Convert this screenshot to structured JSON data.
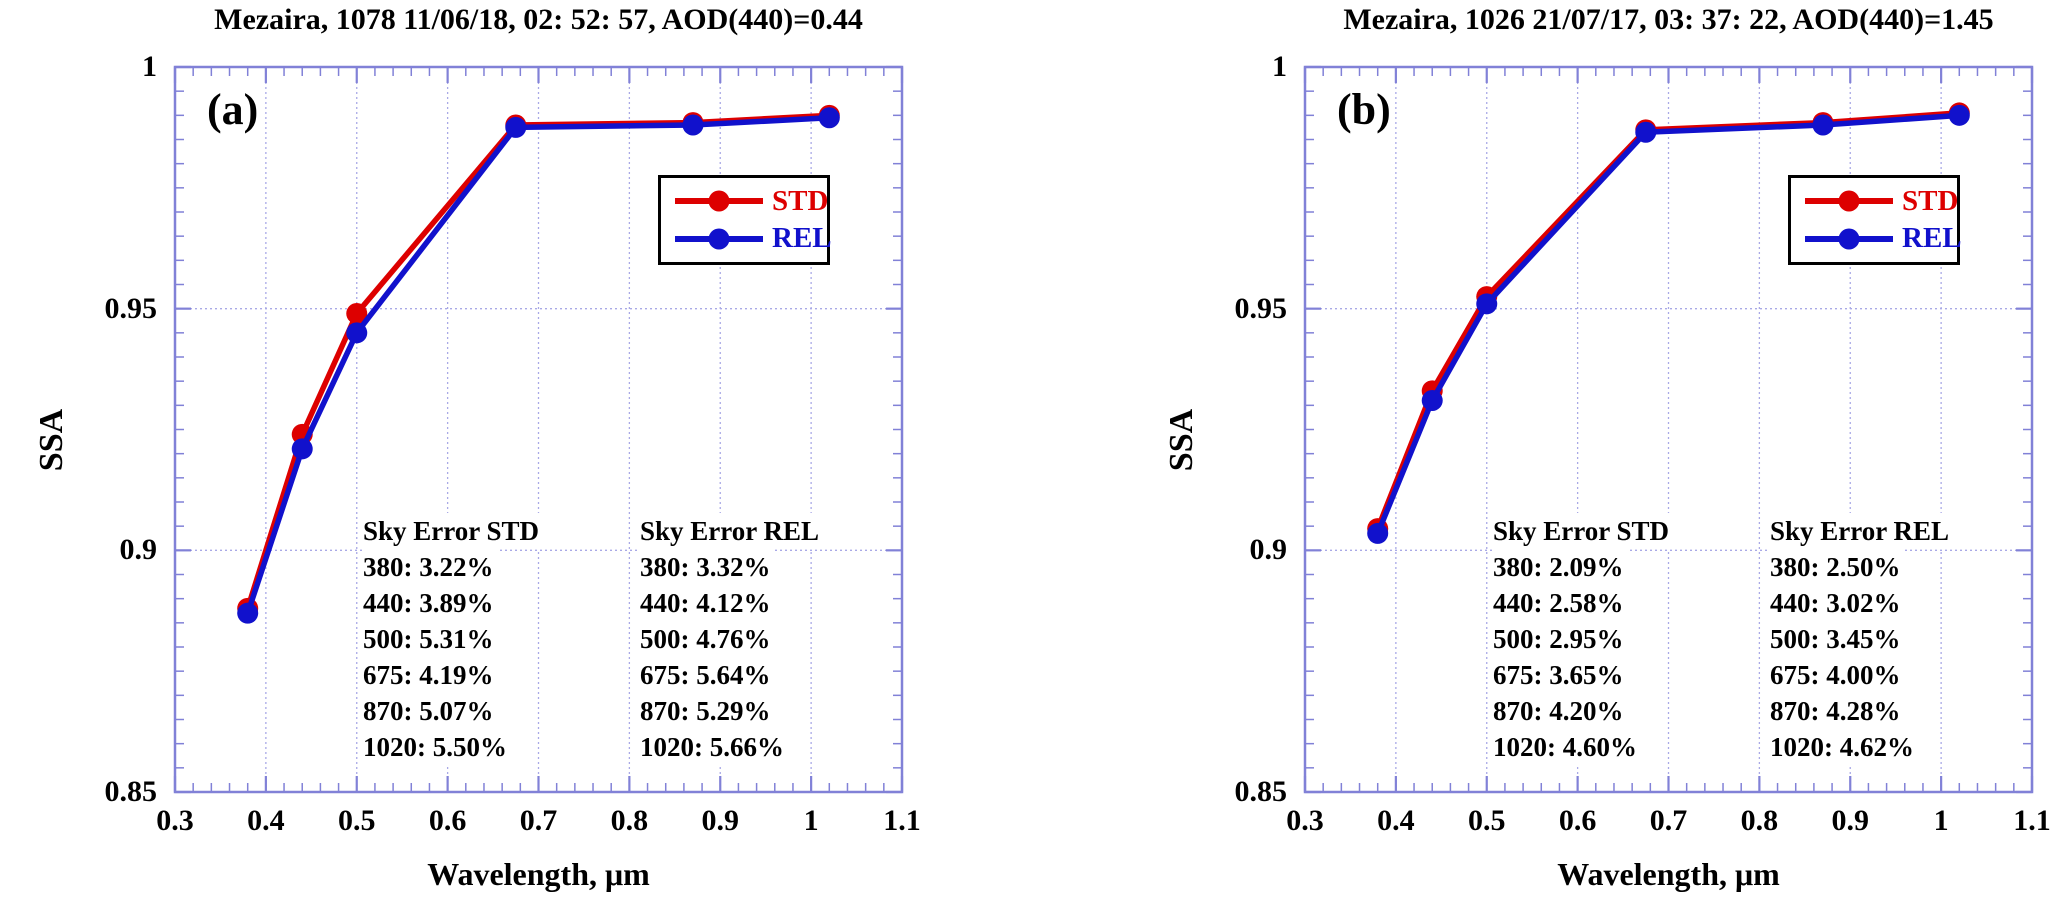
{
  "figure": {
    "background": "#ffffff",
    "text_color": "#000000",
    "axis_color": "#8181d7",
    "grid_color": "#a9a9e6",
    "legend_border_color": "#000000"
  },
  "chart_data": [
    {
      "type": "line",
      "panel_label": "(a)",
      "title": "Mezaira, 1078 11/06/18, 02: 52: 57, AOD(440)=0.44",
      "xlabel": "Wavelength, μm",
      "ylabel": "SSA",
      "xlim": [
        0.3,
        1.1
      ],
      "ylim": [
        0.85,
        1.0
      ],
      "grid": true,
      "legend_position": "upper-right",
      "x_tick_labels": [
        "0.3",
        "0.4",
        "0.5",
        "0.6",
        "0.7",
        "0.8",
        "0.9",
        "1",
        "1.1"
      ],
      "x_tick_values": [
        0.3,
        0.4,
        0.5,
        0.6,
        0.7,
        0.8,
        0.9,
        1.0,
        1.1
      ],
      "y_tick_labels": [
        "1",
        "0.95",
        "0.9",
        "0.85"
      ],
      "y_tick_values": [
        1.0,
        0.95,
        0.9,
        0.85
      ],
      "x_minor_step": 0.02,
      "y_minor_step": 0.005,
      "x": [
        0.38,
        0.44,
        0.5,
        0.675,
        0.87,
        1.02
      ],
      "series": [
        {
          "name": "STD",
          "color": "#dd0000",
          "values": [
            0.888,
            0.924,
            0.949,
            0.988,
            0.9885,
            0.99
          ]
        },
        {
          "name": "REL",
          "color": "#1111cc",
          "values": [
            0.887,
            0.921,
            0.945,
            0.9875,
            0.988,
            0.9895
          ]
        }
      ],
      "annotations": [
        {
          "heading": "Sky Error STD",
          "lines": [
            "380: 3.22%",
            "440: 3.89%",
            "500: 5.31%",
            "675: 4.19%",
            "870: 5.07%",
            "1020: 5.50%"
          ]
        },
        {
          "heading": "Sky Error REL",
          "lines": [
            "380: 3.32%",
            "440: 4.12%",
            "500: 4.76%",
            "675: 5.64%",
            "870: 5.29%",
            "1020: 5.66%"
          ]
        }
      ]
    },
    {
      "type": "line",
      "panel_label": "(b)",
      "title": "Mezaira, 1026 21/07/17, 03: 37: 22, AOD(440)=1.45",
      "xlabel": "Wavelength, μm",
      "ylabel": "SSA",
      "xlim": [
        0.3,
        1.1
      ],
      "ylim": [
        0.85,
        1.0
      ],
      "grid": true,
      "legend_position": "upper-right",
      "x_tick_labels": [
        "0.3",
        "0.4",
        "0.5",
        "0.6",
        "0.7",
        "0.8",
        "0.9",
        "1",
        "1.1"
      ],
      "x_tick_values": [
        0.3,
        0.4,
        0.5,
        0.6,
        0.7,
        0.8,
        0.9,
        1.0,
        1.1
      ],
      "y_tick_labels": [
        "1",
        "0.95",
        "0.9",
        "0.85"
      ],
      "y_tick_values": [
        1.0,
        0.95,
        0.9,
        0.85
      ],
      "x_minor_step": 0.02,
      "y_minor_step": 0.005,
      "x": [
        0.38,
        0.44,
        0.5,
        0.675,
        0.87,
        1.02
      ],
      "series": [
        {
          "name": "STD",
          "color": "#dd0000",
          "values": [
            0.9045,
            0.933,
            0.9525,
            0.987,
            0.9885,
            0.9905
          ]
        },
        {
          "name": "REL",
          "color": "#1111cc",
          "values": [
            0.9035,
            0.931,
            0.951,
            0.9865,
            0.988,
            0.99
          ]
        }
      ],
      "annotations": [
        {
          "heading": "Sky Error STD",
          "lines": [
            "380: 2.09%",
            "440: 2.58%",
            "500: 2.95%",
            "675: 3.65%",
            "870: 4.20%",
            "1020: 4.60%"
          ]
        },
        {
          "heading": "Sky Error REL",
          "lines": [
            "380: 2.50%",
            "440: 3.02%",
            "500: 3.45%",
            "675: 4.00%",
            "870: 4.28%",
            "1020: 4.62%"
          ]
        }
      ]
    }
  ]
}
